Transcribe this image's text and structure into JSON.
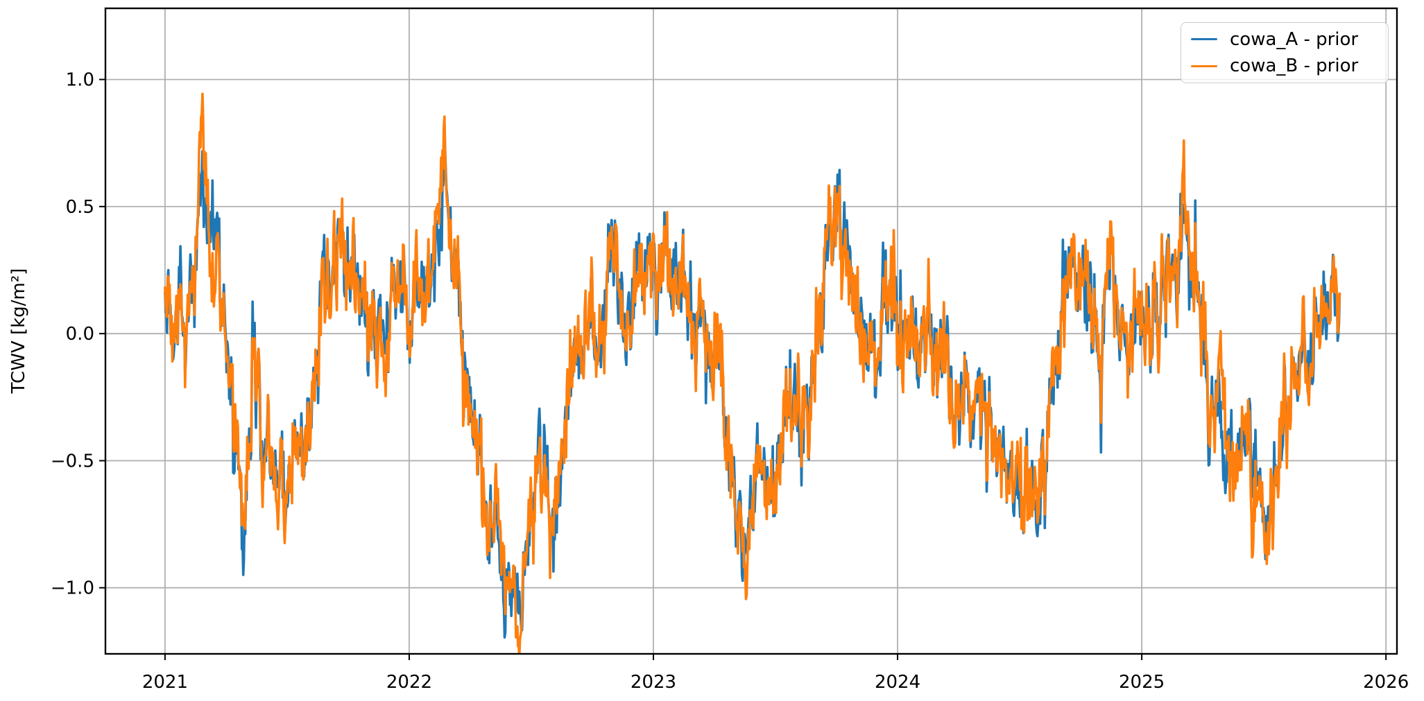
{
  "chart_data": {
    "type": "line",
    "title": "",
    "xlabel": "",
    "ylabel": "TCWV [kg/m²]",
    "grid": true,
    "legend_position": "upper right",
    "background_color": "#ffffff",
    "grid_color": "#b0b0b0",
    "spine_color": "#000000",
    "xlim": [
      2020.756,
      2026.045
    ],
    "ylim": [
      -1.26,
      1.28
    ],
    "xticks": [
      2021,
      2022,
      2023,
      2024,
      2025,
      2026
    ],
    "xtick_labels": [
      "2021",
      "2022",
      "2023",
      "2024",
      "2025",
      "2026"
    ],
    "yticks": [
      -1.0,
      -0.5,
      0.0,
      0.5,
      1.0
    ],
    "ytick_labels": [
      "−1.0",
      "−0.5",
      "0.0",
      "0.5",
      "1.0"
    ],
    "x_start": 2021.0,
    "x_end": 2025.81,
    "sample_interval_days": 1,
    "series": [
      {
        "name": "cowa_A - prior",
        "color": "#1f77b4",
        "seed": 7
      },
      {
        "name": "cowa_B - prior",
        "color": "#ff7f0e",
        "seed": 13
      }
    ],
    "seasonal_keypoints": [
      [
        2021.0,
        0.18
      ],
      [
        2021.04,
        0.12
      ],
      [
        2021.08,
        0.2
      ],
      [
        2021.12,
        0.32
      ],
      [
        2021.16,
        0.45
      ],
      [
        2021.2,
        0.25
      ],
      [
        2021.24,
        0.02
      ],
      [
        2021.28,
        -0.38
      ],
      [
        2021.32,
        -0.6
      ],
      [
        2021.36,
        -0.3
      ],
      [
        2021.4,
        -0.48
      ],
      [
        2021.44,
        -0.58
      ],
      [
        2021.48,
        -0.6
      ],
      [
        2021.52,
        -0.56
      ],
      [
        2021.56,
        -0.45
      ],
      [
        2021.6,
        -0.25
      ],
      [
        2021.64,
        -0.05
      ],
      [
        2021.68,
        0.12
      ],
      [
        2021.72,
        0.2
      ],
      [
        2021.76,
        0.25
      ],
      [
        2021.8,
        0.18
      ],
      [
        2021.84,
        0.1
      ],
      [
        2021.88,
        0.04
      ],
      [
        2021.92,
        0.08
      ],
      [
        2021.96,
        0.1
      ],
      [
        2022.0,
        0.12
      ],
      [
        2022.04,
        0.15
      ],
      [
        2022.08,
        0.18
      ],
      [
        2022.12,
        0.3
      ],
      [
        2022.16,
        0.26
      ],
      [
        2022.2,
        0.1
      ],
      [
        2022.24,
        -0.12
      ],
      [
        2022.28,
        -0.38
      ],
      [
        2022.32,
        -0.52
      ],
      [
        2022.36,
        -0.62
      ],
      [
        2022.4,
        -0.75
      ],
      [
        2022.44,
        -0.85
      ],
      [
        2022.48,
        -0.8
      ],
      [
        2022.52,
        -0.62
      ],
      [
        2022.56,
        -0.48
      ],
      [
        2022.6,
        -0.55
      ],
      [
        2022.64,
        -0.35
      ],
      [
        2022.68,
        -0.12
      ],
      [
        2022.72,
        0.02
      ],
      [
        2022.76,
        0.12
      ],
      [
        2022.8,
        0.18
      ],
      [
        2022.84,
        0.12
      ],
      [
        2022.88,
        0.06
      ],
      [
        2022.92,
        0.05
      ],
      [
        2022.96,
        0.1
      ],
      [
        2023.0,
        0.12
      ],
      [
        2023.04,
        0.2
      ],
      [
        2023.08,
        0.26
      ],
      [
        2023.12,
        0.24
      ],
      [
        2023.16,
        0.12
      ],
      [
        2023.2,
        -0.02
      ],
      [
        2023.24,
        -0.18
      ],
      [
        2023.28,
        -0.4
      ],
      [
        2023.32,
        -0.55
      ],
      [
        2023.36,
        -0.6
      ],
      [
        2023.4,
        -0.58
      ],
      [
        2023.44,
        -0.62
      ],
      [
        2023.48,
        -0.58
      ],
      [
        2023.52,
        -0.42
      ],
      [
        2023.56,
        -0.3
      ],
      [
        2023.6,
        -0.4
      ],
      [
        2023.64,
        -0.22
      ],
      [
        2023.68,
        0.02
      ],
      [
        2023.72,
        0.2
      ],
      [
        2023.76,
        0.3
      ],
      [
        2023.8,
        0.16
      ],
      [
        2023.84,
        0.12
      ],
      [
        2023.88,
        0.08
      ],
      [
        2023.92,
        0.05
      ],
      [
        2023.96,
        0.1
      ],
      [
        2024.0,
        0.1
      ],
      [
        2024.04,
        0.12
      ],
      [
        2024.08,
        0.12
      ],
      [
        2024.12,
        0.1
      ],
      [
        2024.16,
        0.02
      ],
      [
        2024.2,
        -0.12
      ],
      [
        2024.24,
        -0.28
      ],
      [
        2024.28,
        -0.25
      ],
      [
        2024.32,
        -0.38
      ],
      [
        2024.36,
        -0.45
      ],
      [
        2024.4,
        -0.55
      ],
      [
        2024.44,
        -0.62
      ],
      [
        2024.48,
        -0.58
      ],
      [
        2024.52,
        -0.62
      ],
      [
        2024.56,
        -0.6
      ],
      [
        2024.6,
        -0.52
      ],
      [
        2024.64,
        -0.28
      ],
      [
        2024.68,
        0.0
      ],
      [
        2024.72,
        0.06
      ],
      [
        2024.76,
        0.15
      ],
      [
        2024.8,
        0.04
      ],
      [
        2024.84,
        -0.08
      ],
      [
        2024.88,
        0.18
      ],
      [
        2024.92,
        0.1
      ],
      [
        2024.96,
        0.02
      ],
      [
        2025.0,
        0.08
      ],
      [
        2025.04,
        0.12
      ],
      [
        2025.08,
        0.15
      ],
      [
        2025.12,
        0.25
      ],
      [
        2025.16,
        0.38
      ],
      [
        2025.2,
        0.28
      ],
      [
        2025.24,
        0.0
      ],
      [
        2025.28,
        -0.25
      ],
      [
        2025.32,
        -0.42
      ],
      [
        2025.36,
        -0.35
      ],
      [
        2025.4,
        -0.48
      ],
      [
        2025.44,
        -0.52
      ],
      [
        2025.48,
        -0.45
      ],
      [
        2025.52,
        -0.4
      ],
      [
        2025.56,
        -0.28
      ],
      [
        2025.6,
        -0.38
      ],
      [
        2025.64,
        -0.3
      ],
      [
        2025.68,
        -0.2
      ],
      [
        2025.72,
        -0.05
      ],
      [
        2025.76,
        0.1
      ],
      [
        2025.81,
        0.22
      ]
    ],
    "noise": {
      "shared_seed": 1234,
      "shared": [
        {
          "phi": 0.93,
          "sigma": 0.045
        },
        {
          "phi": 0.4,
          "sigma": 0.06
        }
      ],
      "per_series": {
        "phi": 0.3,
        "sigma": 0.05
      }
    },
    "events": [
      {
        "series": "cowa_B - prior",
        "t": 2021.155,
        "amp": 0.22,
        "width_days": 6
      },
      {
        "series": "cowa_A - prior",
        "t": 2021.195,
        "amp": 0.2,
        "width_days": 4
      },
      {
        "series": "cowa_A - prior",
        "t": 2021.325,
        "amp": -0.3,
        "width_days": 4
      },
      {
        "series": "cowa_B - prior",
        "t": 2021.33,
        "amp": -0.2,
        "width_days": 4
      },
      {
        "series": "cowa_B - prior",
        "t": 2022.13,
        "amp": 0.17,
        "width_days": 5
      },
      {
        "series": "cowa_A - prior",
        "t": 2022.378,
        "amp": -0.17,
        "width_days": 4
      },
      {
        "series": "cowa_B - prior",
        "t": 2022.448,
        "amp": -0.2,
        "width_days": 4
      },
      {
        "series": "cowa_A - prior",
        "t": 2023.78,
        "amp": 0.12,
        "width_days": 4
      },
      {
        "series": "cowa_B - prior",
        "t": 2025.18,
        "amp": 0.13,
        "width_days": 5
      },
      {
        "series": "cowa_A - prior",
        "t": 2025.33,
        "amp": -0.3,
        "width_days": 4
      },
      {
        "series": "cowa_B - prior",
        "t": 2025.46,
        "amp": -0.3,
        "width_days": 4
      }
    ],
    "observed_extremes": {
      "cowa_A_max": 0.59,
      "cowa_A_min": -1.01,
      "cowa_B_max": 0.67,
      "cowa_B_min": -1.05
    }
  },
  "legend": {
    "items": [
      {
        "label": "cowa_A - prior"
      },
      {
        "label": "cowa_B - prior"
      }
    ]
  }
}
